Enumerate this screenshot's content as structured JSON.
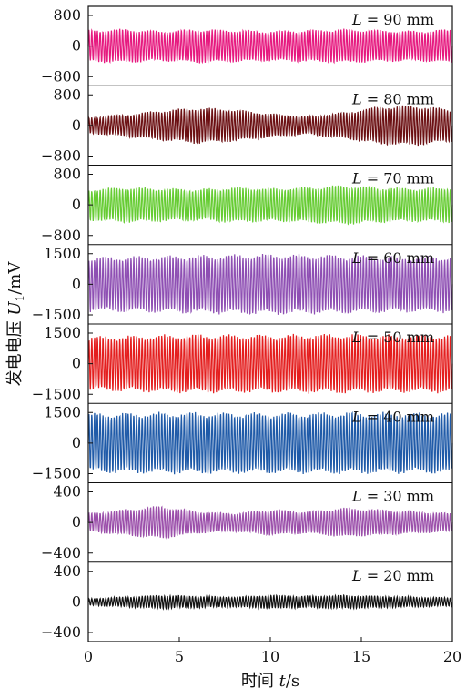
{
  "chart_data": {
    "type": "line",
    "layout": "stacked-panels",
    "xlabel_prefix": "时间 ",
    "xlabel_var": "t",
    "xlabel_unit": "/s",
    "ylabel_prefix": "发电电压 ",
    "ylabel_var": "U",
    "ylabel_sub": "1",
    "ylabel_unit": "/mV",
    "xlim": [
      0,
      20
    ],
    "xticks": [
      0,
      5,
      10,
      15,
      20
    ],
    "xtick_labels": [
      "0",
      "5",
      "10",
      "15",
      "20"
    ],
    "panels": [
      {
        "label": "L = 90 mm",
        "label_var": "L",
        "label_rest": " = 90 mm",
        "color": "#e6197f",
        "ylim": [
          -800,
          800
        ],
        "yticks": [
          800,
          0,
          -800
        ],
        "ytick_labels": [
          "800",
          "0",
          "−800"
        ],
        "amplitude": 450,
        "cycles": 130,
        "envelope": [
          0.85,
          0.9,
          0.8,
          0.9,
          0.85,
          0.8,
          0.85,
          0.9,
          0.85,
          0.8,
          0.9
        ]
      },
      {
        "label": "L = 80 mm",
        "label_var": "L",
        "label_rest": " = 80 mm",
        "color": "#6b0f12",
        "ylim": [
          -800,
          800
        ],
        "yticks": [
          800,
          0,
          -800
        ],
        "ytick_labels": [
          "800",
          "0",
          "−800"
        ],
        "amplitude": 480,
        "cycles": 130,
        "envelope": [
          0.4,
          0.55,
          0.75,
          0.9,
          0.8,
          0.6,
          0.45,
          0.65,
          0.95,
          1.0,
          0.8
        ]
      },
      {
        "label": "L = 70 mm",
        "label_var": "L",
        "label_rest": " = 70 mm",
        "color": "#66cc33",
        "ylim": [
          -800,
          800
        ],
        "yticks": [
          800,
          0,
          -800
        ],
        "ytick_labels": [
          "800",
          "0",
          "−800"
        ],
        "amplitude": 470,
        "cycles": 130,
        "envelope": [
          0.8,
          0.9,
          0.85,
          0.8,
          0.9,
          0.85,
          0.9,
          1.0,
          0.9,
          0.85,
          0.9
        ]
      },
      {
        "label": "L = 60 mm",
        "label_var": "L",
        "label_rest": " = 60 mm",
        "color": "#8e4fb3",
        "ylim": [
          -1500,
          1500
        ],
        "yticks": [
          1500,
          0,
          -1500
        ],
        "ytick_labels": [
          "1500",
          "0",
          "−1500"
        ],
        "amplitude": 1350,
        "cycles": 130,
        "envelope": [
          0.9,
          0.92,
          0.94,
          0.96,
          0.98,
          1.0,
          0.98,
          0.96,
          0.94,
          0.92,
          0.93
        ]
      },
      {
        "label": "L = 50 mm",
        "label_var": "L",
        "label_rest": " = 50 mm",
        "color": "#e41e1e",
        "ylim": [
          -1500,
          1500
        ],
        "yticks": [
          1500,
          0,
          -1500
        ],
        "ytick_labels": [
          "1500",
          "0",
          "−1500"
        ],
        "amplitude": 1350,
        "cycles": 130,
        "envelope": [
          0.9,
          0.92,
          0.95,
          0.97,
          0.96,
          0.95,
          0.97,
          0.98,
          0.96,
          0.95,
          0.97
        ]
      },
      {
        "label": "L = 40 mm",
        "label_var": "L",
        "label_rest": " = 40 mm",
        "color": "#1f5aa8",
        "ylim": [
          -1500,
          1500
        ],
        "yticks": [
          1500,
          0,
          -1500
        ],
        "ytick_labels": [
          "1500",
          "0",
          "−1500"
        ],
        "amplitude": 1400,
        "cycles": 130,
        "envelope": [
          0.95,
          0.96,
          0.97,
          0.98,
          0.97,
          0.96,
          0.97,
          0.98,
          0.97,
          0.96,
          0.97
        ]
      },
      {
        "label": "L = 30 mm",
        "label_var": "L",
        "label_rest": " = 30 mm",
        "color": "#9b4faa",
        "ylim": [
          -400,
          400
        ],
        "yticks": [
          400,
          0,
          -400
        ],
        "ytick_labels": [
          "400",
          "0",
          "−400"
        ],
        "amplitude": 220,
        "cycles": 130,
        "envelope": [
          0.5,
          0.7,
          0.9,
          0.6,
          0.5,
          0.7,
          0.6,
          0.8,
          0.7,
          0.6,
          0.5
        ]
      },
      {
        "label": "L = 20 mm",
        "label_var": "L",
        "label_rest": " = 20 mm",
        "color": "#111111",
        "ylim": [
          -400,
          400
        ],
        "yticks": [
          400,
          0,
          -400
        ],
        "ytick_labels": [
          "400",
          "0",
          "−400"
        ],
        "amplitude": 100,
        "cycles": 130,
        "envelope": [
          0.4,
          0.6,
          0.8,
          0.7,
          0.6,
          0.8,
          0.7,
          0.8,
          0.7,
          0.6,
          0.5
        ]
      }
    ]
  }
}
